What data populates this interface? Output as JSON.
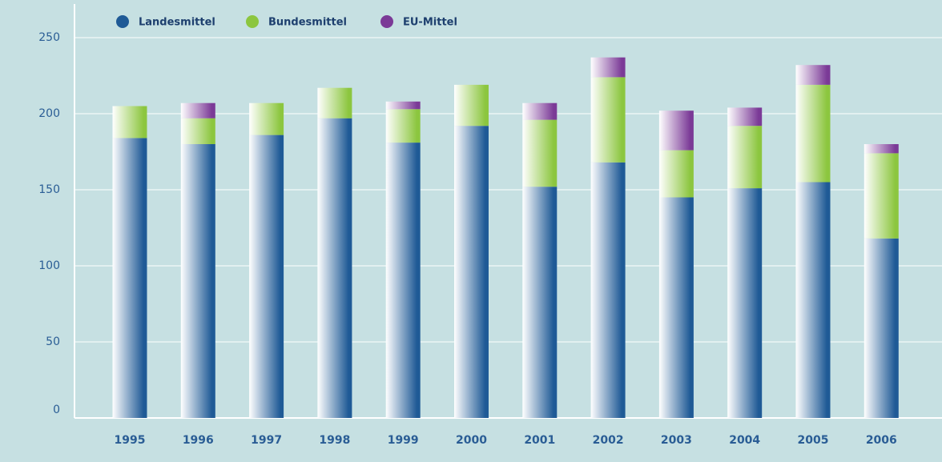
{
  "chart_data": {
    "type": "stacked_bar",
    "categories": [
      "1995",
      "1996",
      "1997",
      "1998",
      "1999",
      "2000",
      "2001",
      "2002",
      "2003",
      "2004",
      "2005",
      "2006"
    ],
    "series": [
      {
        "name": "Landesmittel",
        "color": "#1f5a96",
        "values": [
          184,
          180,
          186,
          197,
          181,
          192,
          152,
          168,
          145,
          151,
          155,
          118
        ]
      },
      {
        "name": "Bundesmittel",
        "color": "#8cc63f",
        "values": [
          21,
          17,
          21,
          20,
          22,
          27,
          44,
          56,
          31,
          41,
          64,
          56
        ]
      },
      {
        "name": "EU-Mittel",
        "color": "#7b3a97",
        "values": [
          0,
          10,
          0,
          0,
          5,
          0,
          11,
          13,
          26,
          12,
          13,
          6
        ]
      }
    ],
    "ylim": [
      0,
      250
    ],
    "yticks": [
      0,
      50,
      100,
      150,
      200,
      250
    ],
    "grid": true
  }
}
